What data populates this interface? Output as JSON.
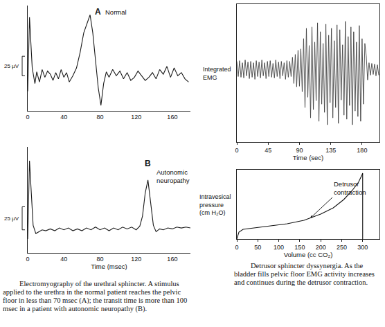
{
  "chart_data": [
    {
      "type": "line",
      "color": "#1a1a1a",
      "grid": false,
      "tick_labels": "x",
      "x": [
        0,
        2,
        5,
        8,
        10,
        13,
        16,
        19,
        22,
        25,
        28,
        31,
        34,
        37,
        40,
        43,
        46,
        50,
        54,
        58,
        62,
        66,
        69,
        72,
        75,
        78,
        81,
        84,
        87,
        90,
        94,
        98,
        102,
        106,
        110,
        114,
        118,
        122,
        126,
        130,
        134,
        138,
        142,
        146,
        150,
        154,
        158,
        162,
        166,
        170,
        174,
        178
      ],
      "values": [
        -20,
        75,
        10,
        -10,
        5,
        -8,
        8,
        -2,
        6,
        2,
        -6,
        4,
        -4,
        8,
        -2,
        4,
        -8,
        0,
        10,
        30,
        55,
        68,
        78,
        55,
        20,
        -15,
        -38,
        -10,
        5,
        -2,
        8,
        0,
        6,
        -4,
        4,
        -6,
        -2,
        6,
        0,
        -6,
        -2,
        4,
        -4,
        8,
        2,
        12,
        -2,
        10,
        0,
        4,
        -4,
        -8
      ],
      "xlim": [
        0,
        180
      ],
      "xticks": [
        0,
        40,
        80,
        120,
        160
      ],
      "ylim": [
        -45,
        90
      ],
      "scale_bar": {
        "label": "25 µV",
        "value": 25
      },
      "annotations": [
        {
          "text": "A",
          "x": 73,
          "y": 82
        },
        {
          "text": "Normal",
          "x": 84,
          "y": 82
        }
      ]
    },
    {
      "type": "line",
      "color": "#1a1a1a",
      "grid": false,
      "tick_labels": "x",
      "x": [
        0,
        2,
        4,
        6,
        9,
        12,
        16,
        20,
        25,
        30,
        35,
        40,
        45,
        50,
        55,
        60,
        65,
        70,
        75,
        80,
        85,
        90,
        95,
        100,
        105,
        110,
        115,
        120,
        124,
        127,
        130,
        133,
        136,
        139,
        142,
        146,
        150,
        155,
        160,
        165,
        170,
        175,
        180
      ],
      "values": [
        -10,
        75,
        40,
        5,
        -4,
        -2,
        0,
        -1,
        1,
        -1,
        2,
        0,
        2,
        -1,
        1,
        -1,
        2,
        0,
        3,
        0,
        2,
        -1,
        2,
        0,
        3,
        1,
        3,
        0,
        4,
        15,
        40,
        54,
        30,
        5,
        -2,
        1,
        0,
        2,
        1,
        3,
        2,
        3,
        2
      ],
      "xlim": [
        0,
        180
      ],
      "xticks": [
        0,
        40,
        80,
        120,
        160
      ],
      "ylim": [
        -25,
        90
      ],
      "xlabel": "Time (msec)",
      "scale_bar": {
        "label": "25 µV",
        "value": 25
      },
      "annotations": [
        {
          "text": "B",
          "x": 128,
          "y": 72
        },
        {
          "text": "Autonomic neuropathy",
          "x": 141,
          "y": 58
        }
      ],
      "caption": "Electromyography of the urethral sphincter. A stimulus applied to the urethra in the normal patient reaches the pelvic floor in less than 70 msec (A); the transit time is more than 100 msec in a patient with autonomic neuropathy (B)."
    },
    {
      "type": "line",
      "color": "#444444",
      "grid": false,
      "tick_labels": "x",
      "ylabel": "Integrated EMG",
      "xlabel": "Time (sec)",
      "x": [
        0,
        2,
        4,
        6,
        8,
        10,
        12,
        14,
        16,
        18,
        20,
        22,
        24,
        26,
        28,
        30,
        32,
        34,
        36,
        38,
        40,
        42,
        44,
        46,
        48,
        50,
        52,
        54,
        56,
        58,
        60,
        62,
        64,
        66,
        68,
        70,
        72,
        74,
        76,
        78,
        80,
        82,
        84,
        86,
        88,
        90,
        92,
        94,
        96,
        98,
        100,
        102,
        104,
        106,
        108,
        110,
        112,
        114,
        116,
        118,
        120,
        122,
        124,
        126,
        128,
        130,
        132,
        134,
        136,
        138,
        140,
        142,
        144,
        146,
        148,
        150,
        152,
        154,
        156,
        158,
        160,
        162,
        164,
        166,
        168,
        170,
        172,
        174,
        176,
        178,
        180,
        182,
        184,
        186,
        188,
        190,
        192,
        194,
        196,
        198,
        200,
        202,
        204
      ],
      "values": [
        12,
        -10,
        13,
        -11,
        10,
        -12,
        14,
        -9,
        11,
        -13,
        12,
        -11,
        10,
        -14,
        13,
        -10,
        11,
        -12,
        14,
        -9,
        10,
        -13,
        12,
        -10,
        13,
        -11,
        9,
        -12,
        14,
        -10,
        11,
        -13,
        12,
        -9,
        10,
        -14,
        13,
        -11,
        12,
        -10,
        18,
        -20,
        22,
        -25,
        28,
        -24,
        30,
        -32,
        45,
        -55,
        60,
        -40,
        35,
        -70,
        62,
        -58,
        40,
        -45,
        68,
        -75,
        55,
        -50,
        38,
        -62,
        66,
        -80,
        50,
        -48,
        60,
        -70,
        42,
        -55,
        65,
        -78,
        58,
        -44,
        36,
        -66,
        70,
        -72,
        48,
        -52,
        62,
        -80,
        55,
        -60,
        40,
        -68,
        64,
        -75,
        45,
        -50,
        38,
        20,
        -15,
        10,
        -8,
        9,
        -7,
        8,
        -9,
        7,
        -8
      ],
      "xlim": [
        0,
        205
      ],
      "xticks": [
        0,
        45,
        90,
        135,
        180
      ],
      "ylim": [
        -105,
        95
      ]
    },
    {
      "type": "line",
      "color": "#111111",
      "grid": false,
      "tick_labels": "x",
      "ylabel": "Intravesical pressure (cm H₂O)",
      "xlabel": "Volume (cc CO₂)",
      "x": [
        0,
        5,
        15,
        40,
        80,
        120,
        160,
        200,
        230,
        255,
        275,
        290,
        298,
        300,
        300
      ],
      "values": [
        0,
        10,
        14,
        16,
        19,
        22,
        27,
        36,
        45,
        57,
        70,
        82,
        92,
        95,
        0
      ],
      "xlim": [
        0,
        340
      ],
      "xticks": [
        0,
        50,
        100,
        150,
        200,
        250,
        300
      ],
      "ylim": [
        0,
        100
      ],
      "annotations": [
        {
          "text": "Detrusor contraction",
          "x": 175,
          "y": 30
        }
      ],
      "caption": "Detrusor sphincter dyssynergia. As the bladder fills pelvic floor EMG activity increases and continues during the detrusor contraction."
    }
  ]
}
